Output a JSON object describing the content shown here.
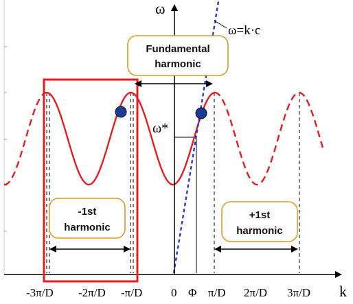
{
  "axes": {
    "y_label": "ω",
    "x_label": "k"
  },
  "x_ticks": [
    "-3π/D",
    "-2π/D",
    "-π/D",
    "0",
    "Φ",
    "π/D",
    "2π/D",
    "3π/D"
  ],
  "labels": {
    "light_line": "ω=k·c",
    "omega_star": "ω*",
    "fundamental": [
      "Fundamental",
      "harmonic"
    ],
    "minus_first": [
      "-1st",
      "harmonic"
    ],
    "plus_first": [
      "+1st",
      "harmonic"
    ]
  },
  "colors": {
    "dispersion_curve": "#e02020",
    "light_line": "#2a3ad6",
    "highlight_box": "#e02020",
    "label_border": "#d99a2b",
    "intersection_point": "#1a3a9a"
  }
}
